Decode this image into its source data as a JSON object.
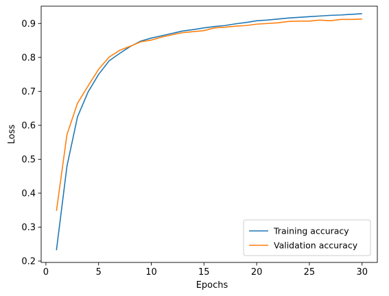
{
  "chart_data": {
    "type": "line",
    "title": "",
    "xlabel": "Epochs",
    "ylabel": "Loss",
    "xlim": [
      -0.45,
      31.45
    ],
    "ylim": [
      0.196,
      0.951
    ],
    "xticks": [
      0,
      5,
      10,
      15,
      20,
      25,
      30
    ],
    "yticks": [
      0.2,
      0.3,
      0.4,
      0.5,
      0.6,
      0.7,
      0.8,
      0.9
    ],
    "grid": false,
    "legend_position": "lower-right",
    "x": [
      1,
      2,
      3,
      4,
      5,
      6,
      7,
      8,
      9,
      10,
      11,
      12,
      13,
      14,
      15,
      16,
      17,
      18,
      19,
      20,
      21,
      22,
      23,
      24,
      25,
      26,
      27,
      28,
      29,
      30
    ],
    "series": [
      {
        "name": "Training accuracy",
        "color": "#1f77b4",
        "values": [
          0.232,
          0.48,
          0.625,
          0.698,
          0.75,
          0.79,
          0.812,
          0.832,
          0.848,
          0.857,
          0.864,
          0.871,
          0.878,
          0.882,
          0.887,
          0.891,
          0.894,
          0.899,
          0.903,
          0.908,
          0.91,
          0.913,
          0.916,
          0.918,
          0.92,
          0.922,
          0.924,
          0.925,
          0.927,
          0.929
        ]
      },
      {
        "name": "Validation accuracy",
        "color": "#ff7f0e",
        "values": [
          0.348,
          0.573,
          0.665,
          0.716,
          0.765,
          0.801,
          0.821,
          0.833,
          0.846,
          0.851,
          0.86,
          0.867,
          0.873,
          0.876,
          0.879,
          0.887,
          0.889,
          0.892,
          0.894,
          0.898,
          0.9,
          0.902,
          0.906,
          0.907,
          0.907,
          0.91,
          0.908,
          0.912,
          0.912,
          0.913
        ]
      }
    ]
  }
}
